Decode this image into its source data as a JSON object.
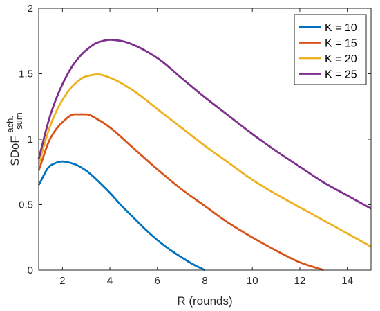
{
  "chart_data": {
    "type": "line",
    "title": "",
    "xlabel": "R (rounds)",
    "ylabel": {
      "main": "SDoF",
      "superscript": "ach.",
      "subscript": "sum"
    },
    "xlim": [
      1,
      15
    ],
    "ylim": [
      0,
      2
    ],
    "xticks": [
      "2",
      "4",
      "6",
      "8",
      "10",
      "12",
      "14"
    ],
    "yticks": [
      "0",
      "0.5",
      "1",
      "1.5",
      "2"
    ],
    "grid": false,
    "legend_position": "top-right",
    "series": [
      {
        "name": "K = 10",
        "color": "#0072BD",
        "x": [
          1,
          1.5,
          2,
          2.5,
          3,
          3.5,
          4,
          4.5,
          5,
          5.5,
          6,
          6.5,
          7,
          7.5,
          8
        ],
        "y": [
          0.65,
          0.8,
          0.83,
          0.81,
          0.76,
          0.68,
          0.59,
          0.49,
          0.4,
          0.31,
          0.23,
          0.16,
          0.1,
          0.045,
          0.0
        ]
      },
      {
        "name": "K = 15",
        "color": "#D95319",
        "x": [
          1,
          1.5,
          2,
          2.5,
          3,
          3.5,
          4,
          5,
          6,
          7,
          8,
          9,
          10,
          11,
          12,
          13
        ],
        "y": [
          0.76,
          1.01,
          1.13,
          1.19,
          1.19,
          1.15,
          1.09,
          0.93,
          0.77,
          0.62,
          0.49,
          0.36,
          0.25,
          0.15,
          0.06,
          0.0
        ]
      },
      {
        "name": "K = 20",
        "color": "#EDB120",
        "x": [
          1,
          1.5,
          2,
          2.5,
          3,
          3.5,
          4,
          5,
          6,
          7,
          8,
          9,
          10,
          11,
          12,
          13,
          14,
          15
        ],
        "y": [
          0.81,
          1.11,
          1.3,
          1.42,
          1.48,
          1.495,
          1.47,
          1.37,
          1.23,
          1.09,
          0.95,
          0.82,
          0.69,
          0.58,
          0.48,
          0.38,
          0.28,
          0.18
        ]
      },
      {
        "name": "K = 25",
        "color": "#7E2F8E",
        "x": [
          1,
          1.5,
          2,
          2.5,
          3,
          3.5,
          4,
          4.5,
          5,
          6,
          7,
          8,
          9,
          10,
          11,
          12,
          13,
          14,
          15
        ],
        "y": [
          0.85,
          1.19,
          1.42,
          1.58,
          1.68,
          1.74,
          1.76,
          1.75,
          1.72,
          1.62,
          1.47,
          1.32,
          1.18,
          1.04,
          0.91,
          0.79,
          0.67,
          0.57,
          0.47
        ]
      }
    ]
  }
}
